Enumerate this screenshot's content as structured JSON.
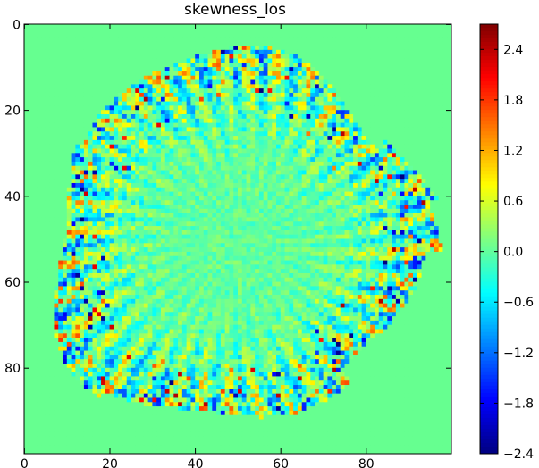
{
  "chart_data": {
    "type": "heatmap",
    "title": "skewness_los",
    "xlabel": "",
    "ylabel": "",
    "x_range": [
      0,
      99
    ],
    "y_range": [
      0,
      99
    ],
    "y_inverted": true,
    "grid": false,
    "xticks": [
      {
        "value": 0,
        "label": "0"
      },
      {
        "value": 20,
        "label": "20"
      },
      {
        "value": 40,
        "label": "40"
      },
      {
        "value": 60,
        "label": "60"
      },
      {
        "value": 80,
        "label": "80"
      }
    ],
    "yticks": [
      {
        "value": 0,
        "label": "0"
      },
      {
        "value": 20,
        "label": "20"
      },
      {
        "value": 40,
        "label": "40"
      },
      {
        "value": 60,
        "label": "60"
      },
      {
        "value": 80,
        "label": "80"
      }
    ],
    "colorbar": {
      "colormap": "jet",
      "vmin": -2.4,
      "vmax": 2.7,
      "ticks": [
        {
          "value": 2.4,
          "label": "2.4"
        },
        {
          "value": 1.8,
          "label": "1.8"
        },
        {
          "value": 1.2,
          "label": "1.2"
        },
        {
          "value": 0.6,
          "label": "0.6"
        },
        {
          "value": 0.0,
          "label": "0.0"
        },
        {
          "value": -0.6,
          "label": "−0.6"
        },
        {
          "value": -1.2,
          "label": "−1.2"
        },
        {
          "value": -1.8,
          "label": "−1.8"
        },
        {
          "value": -2.4,
          "label": "−2.4"
        }
      ]
    },
    "background_value": 0.0,
    "colors": {
      "background_cell": "#66ff90",
      "frame": "#000000"
    }
  }
}
